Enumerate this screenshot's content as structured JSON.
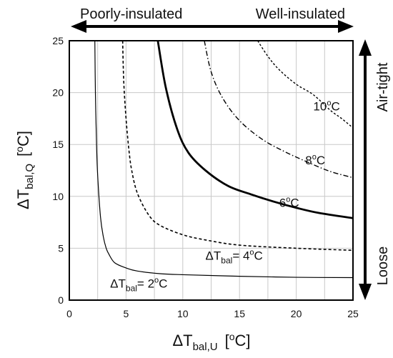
{
  "chart_data": {
    "type": "line",
    "xlim": [
      0,
      25
    ],
    "ylim": [
      0,
      25
    ],
    "xticks": [
      0,
      5,
      10,
      15,
      20,
      25
    ],
    "yticks": [
      0,
      5,
      10,
      15,
      20,
      25
    ],
    "grid": true,
    "xlabel": {
      "prefix": "ΔT",
      "sub": "bal,U",
      "unit_open": "[",
      "unit_sup": "o",
      "unit_rest": "C]"
    },
    "ylabel": {
      "prefix": "ΔT",
      "sub": "bal,Q",
      "unit_open": "[",
      "unit_sup": "o",
      "unit_rest": "C]"
    },
    "top_arrow": {
      "left": "Poorly-insulated",
      "right": "Well-insulated"
    },
    "right_arrow": {
      "top": "Air-tight",
      "bottom": "Loose"
    },
    "series": [
      {
        "curve_label": {
          "prefix": "ΔT",
          "sub": "bal",
          "eq": "= 2",
          "sup": "o",
          "unit": "C",
          "at": [
            3.6,
            1.2
          ]
        },
        "style": "solid-thin",
        "points": [
          [
            2.25,
            25
          ],
          [
            2.3,
            20
          ],
          [
            2.4,
            15
          ],
          [
            2.5,
            12
          ],
          [
            2.75,
            8
          ],
          [
            3,
            6.1
          ],
          [
            3.25,
            5
          ],
          [
            3.5,
            4.4
          ],
          [
            4,
            3.6
          ],
          [
            5,
            3.1
          ],
          [
            6,
            2.8
          ],
          [
            8,
            2.55
          ],
          [
            10,
            2.45
          ],
          [
            15,
            2.3
          ],
          [
            20,
            2.2
          ],
          [
            25,
            2.17
          ]
        ]
      },
      {
        "curve_label": {
          "prefix": "ΔT",
          "sub": "bal",
          "eq": "= 4",
          "sup": "o",
          "unit": "C",
          "at": [
            12,
            3.9
          ]
        },
        "style": "dashed",
        "points": [
          [
            4.7,
            25
          ],
          [
            4.8,
            21
          ],
          [
            5,
            17.5
          ],
          [
            5.25,
            14.5
          ],
          [
            5.5,
            12.5
          ],
          [
            6,
            10.3
          ],
          [
            7,
            8.2
          ],
          [
            8,
            7.2
          ],
          [
            10,
            6.3
          ],
          [
            12,
            5.8
          ],
          [
            15,
            5.3
          ],
          [
            20,
            5.0
          ],
          [
            25,
            4.8
          ]
        ]
      },
      {
        "curve_label": {
          "text": "6",
          "sup": "o",
          "unit": "C",
          "at": [
            18.5,
            9.0
          ]
        },
        "style": "solid-thick",
        "points": [
          [
            7.8,
            25
          ],
          [
            8.5,
            20.5
          ],
          [
            9.5,
            16.5
          ],
          [
            10.5,
            14.2
          ],
          [
            12,
            12.5
          ],
          [
            14,
            11
          ],
          [
            16,
            10.2
          ],
          [
            18,
            9.5
          ],
          [
            20,
            8.9
          ],
          [
            22,
            8.4
          ],
          [
            25,
            7.9
          ]
        ]
      },
      {
        "curve_label": {
          "text": "8",
          "sup": "o",
          "unit": "C",
          "at": [
            20.8,
            13.1
          ]
        },
        "style": "dash-dot",
        "points": [
          [
            11.9,
            25
          ],
          [
            12.5,
            22
          ],
          [
            13.5,
            19.5
          ],
          [
            15,
            17.3
          ],
          [
            17,
            15.5
          ],
          [
            19,
            14.3
          ],
          [
            21,
            13.3
          ],
          [
            23,
            12.4
          ],
          [
            25,
            11.8
          ]
        ]
      },
      {
        "curve_label": {
          "text": "10",
          "sup": "o",
          "unit": "C",
          "at": [
            21.5,
            18.3
          ]
        },
        "style": "dashed-fine",
        "points": [
          [
            16.6,
            25
          ],
          [
            17.5,
            23.5
          ],
          [
            18.5,
            22.2
          ],
          [
            20,
            20.8
          ],
          [
            21.5,
            19.8
          ],
          [
            23,
            18.3
          ],
          [
            24,
            17.5
          ],
          [
            25,
            16.6
          ]
        ]
      }
    ]
  }
}
